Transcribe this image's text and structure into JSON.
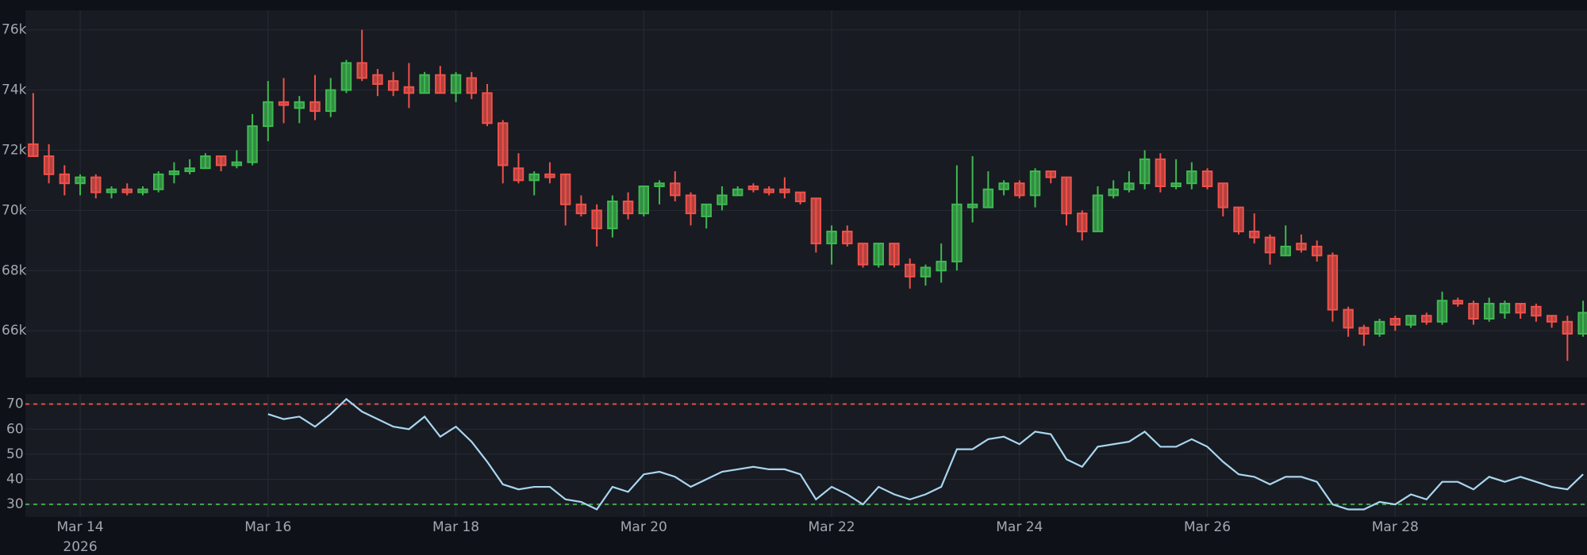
{
  "chart_data": {
    "type": "candlestick",
    "x": [
      "2026-03-13T12:00",
      "2026-03-13T16:00",
      "2026-03-13T20:00",
      "2026-03-14T00:00",
      "2026-03-14T04:00",
      "2026-03-14T08:00",
      "2026-03-14T12:00",
      "2026-03-14T16:00",
      "2026-03-14T20:00",
      "2026-03-15T00:00",
      "2026-03-15T04:00",
      "2026-03-15T08:00",
      "2026-03-15T12:00",
      "2026-03-15T16:00",
      "2026-03-15T20:00",
      "2026-03-16T00:00",
      "2026-03-16T04:00",
      "2026-03-16T08:00",
      "2026-03-16T12:00",
      "2026-03-16T16:00",
      "2026-03-16T20:00",
      "2026-03-17T00:00",
      "2026-03-17T04:00",
      "2026-03-17T08:00",
      "2026-03-17T12:00",
      "2026-03-17T16:00",
      "2026-03-17T20:00",
      "2026-03-18T00:00",
      "2026-03-18T04:00",
      "2026-03-18T08:00",
      "2026-03-18T12:00",
      "2026-03-18T16:00",
      "2026-03-18T20:00",
      "2026-03-19T00:00",
      "2026-03-19T04:00",
      "2026-03-19T08:00",
      "2026-03-19T12:00",
      "2026-03-19T16:00",
      "2026-03-19T20:00",
      "2026-03-20T00:00",
      "2026-03-20T04:00",
      "2026-03-20T08:00",
      "2026-03-20T12:00",
      "2026-03-20T16:00",
      "2026-03-20T20:00",
      "2026-03-21T00:00",
      "2026-03-21T04:00",
      "2026-03-21T08:00",
      "2026-03-21T12:00",
      "2026-03-21T16:00",
      "2026-03-21T20:00",
      "2026-03-22T00:00",
      "2026-03-22T04:00",
      "2026-03-22T08:00",
      "2026-03-22T12:00",
      "2026-03-22T16:00",
      "2026-03-22T20:00",
      "2026-03-23T00:00",
      "2026-03-23T04:00",
      "2026-03-23T08:00",
      "2026-03-23T12:00",
      "2026-03-23T16:00",
      "2026-03-23T20:00",
      "2026-03-24T00:00",
      "2026-03-24T04:00",
      "2026-03-24T08:00",
      "2026-03-24T12:00",
      "2026-03-24T16:00",
      "2026-03-24T20:00",
      "2026-03-25T00:00",
      "2026-03-25T04:00",
      "2026-03-25T08:00",
      "2026-03-25T12:00",
      "2026-03-25T16:00",
      "2026-03-25T20:00",
      "2026-03-26T00:00",
      "2026-03-26T04:00",
      "2026-03-26T08:00",
      "2026-03-26T12:00",
      "2026-03-26T16:00",
      "2026-03-26T20:00",
      "2026-03-27T00:00",
      "2026-03-27T04:00",
      "2026-03-27T08:00",
      "2026-03-27T12:00",
      "2026-03-27T16:00",
      "2026-03-27T20:00",
      "2026-03-28T00:00",
      "2026-03-28T04:00",
      "2026-03-28T08:00",
      "2026-03-28T12:00",
      "2026-03-28T16:00",
      "2026-03-28T20:00",
      "2026-03-29T00:00",
      "2026-03-29T04:00",
      "2026-03-29T08:00",
      "2026-03-29T12:00",
      "2026-03-29T16:00",
      "2026-03-29T20:00",
      "2026-03-30T00:00"
    ],
    "open": [
      72200,
      71800,
      71200,
      70900,
      71100,
      70600,
      70700,
      70600,
      70700,
      71200,
      71300,
      71400,
      71800,
      71500,
      71600,
      72800,
      73600,
      73400,
      73600,
      73300,
      74000,
      74900,
      74500,
      74300,
      74100,
      73900,
      74500,
      73900,
      74400,
      73900,
      72900,
      71400,
      71000,
      71200,
      71200,
      70200,
      70000,
      69400,
      70300,
      69900,
      70800,
      70900,
      70500,
      69800,
      70200,
      70500,
      70800,
      70700,
      70700,
      70600,
      70400,
      68900,
      69300,
      68900,
      68200,
      68900,
      68200,
      67800,
      68000,
      68300,
      70100,
      70100,
      70700,
      70900,
      70500,
      71300,
      71100,
      69900,
      69300,
      70500,
      70700,
      70900,
      71700,
      70800,
      70900,
      71300,
      70900,
      70100,
      69300,
      69100,
      68500,
      68900,
      68800,
      68500,
      66700,
      66100,
      65900,
      66400,
      66200,
      66500,
      66300,
      67000,
      66900,
      66400,
      66600,
      66900,
      66800,
      66500,
      66300,
      65900
    ],
    "high": [
      73900,
      72200,
      71500,
      71200,
      71200,
      70800,
      70900,
      70800,
      71300,
      71600,
      71700,
      71900,
      71800,
      72000,
      73200,
      74300,
      74400,
      73800,
      74500,
      74400,
      75000,
      76000,
      74700,
      74600,
      74900,
      74600,
      74800,
      74600,
      74600,
      74200,
      73000,
      71900,
      71300,
      71600,
      71200,
      70500,
      70200,
      70500,
      70600,
      70800,
      71000,
      71300,
      70600,
      70200,
      70800,
      70800,
      70900,
      70800,
      71100,
      70600,
      70400,
      69500,
      69500,
      68900,
      68900,
      68900,
      68400,
      68200,
      68900,
      71500,
      71800,
      71300,
      71000,
      71000,
      71400,
      71300,
      71100,
      70000,
      70800,
      71000,
      71300,
      72000,
      71900,
      71700,
      71600,
      71400,
      70900,
      70100,
      69900,
      69200,
      69500,
      69200,
      69000,
      68600,
      66800,
      66200,
      66400,
      66500,
      66500,
      66600,
      67300,
      67100,
      67000,
      67100,
      67000,
      66900,
      66900,
      66500,
      66500,
      67000
    ],
    "low": [
      71800,
      70900,
      70500,
      70500,
      70400,
      70400,
      70500,
      70500,
      70600,
      70900,
      71200,
      71400,
      71300,
      71400,
      71500,
      72300,
      72900,
      72900,
      73000,
      73100,
      73900,
      74300,
      73800,
      73800,
      73400,
      73900,
      73900,
      73600,
      73700,
      72800,
      70900,
      70900,
      70500,
      70900,
      69500,
      69800,
      68800,
      69100,
      69700,
      69800,
      70200,
      70300,
      69500,
      69400,
      70000,
      70500,
      70600,
      70500,
      70400,
      70200,
      68600,
      68200,
      68800,
      68100,
      68100,
      68100,
      67400,
      67500,
      67600,
      68000,
      69600,
      70100,
      70500,
      70400,
      70100,
      70900,
      69500,
      69000,
      69300,
      70400,
      70600,
      70700,
      70600,
      70700,
      70700,
      70700,
      69800,
      69200,
      68900,
      68200,
      68500,
      68600,
      68300,
      66300,
      65800,
      65500,
      65800,
      66000,
      66100,
      66200,
      66200,
      66800,
      66200,
      66300,
      66400,
      66400,
      66300,
      66100,
      65000,
      65800
    ],
    "close": [
      71800,
      71200,
      70900,
      71100,
      70600,
      70700,
      70600,
      70700,
      71200,
      71300,
      71400,
      71800,
      71500,
      71600,
      72800,
      73600,
      73500,
      73600,
      73300,
      74000,
      74900,
      74400,
      74200,
      74000,
      73900,
      74500,
      73900,
      74500,
      73900,
      72900,
      71500,
      71000,
      71200,
      71100,
      70200,
      69900,
      69400,
      70300,
      69900,
      70800,
      70900,
      70500,
      69900,
      70200,
      70500,
      70700,
      70700,
      70600,
      70600,
      70300,
      68900,
      69300,
      68900,
      68200,
      68900,
      68200,
      67800,
      68100,
      68300,
      70200,
      70200,
      70700,
      70900,
      70500,
      71300,
      71100,
      69900,
      69300,
      70500,
      70700,
      70900,
      71700,
      70800,
      70900,
      71300,
      70800,
      70100,
      69300,
      69100,
      68600,
      68800,
      68700,
      68500,
      66700,
      66100,
      65900,
      66300,
      66200,
      66500,
      66300,
      67000,
      66900,
      66400,
      66900,
      66900,
      66600,
      66500,
      66300,
      65900,
      66600
    ],
    "up_color": "#3fb950",
    "down_color": "#f0514a",
    "ylim": [
      64450,
      76650
    ],
    "yticks": [
      {
        "value": 66000,
        "label": "66k"
      },
      {
        "value": 68000,
        "label": "68k"
      },
      {
        "value": 70000,
        "label": "70k"
      },
      {
        "value": 72000,
        "label": "72k"
      },
      {
        "value": 74000,
        "label": "74k"
      },
      {
        "value": 76000,
        "label": "76k"
      }
    ],
    "xlim": [
      "2026-03-13T10:00",
      "2026-03-30T01:00"
    ],
    "xticks": [
      {
        "value": "2026-03-14",
        "label": "Mar 14"
      },
      {
        "value": "2026-03-16",
        "label": "Mar 16"
      },
      {
        "value": "2026-03-18",
        "label": "Mar 18"
      },
      {
        "value": "2026-03-20",
        "label": "Mar 20"
      },
      {
        "value": "2026-03-22",
        "label": "Mar 22"
      },
      {
        "value": "2026-03-24",
        "label": "Mar 24"
      },
      {
        "value": "2026-03-26",
        "label": "Mar 26"
      },
      {
        "value": "2026-03-28",
        "label": "Mar 28"
      }
    ],
    "x_year": "2026",
    "grid": true,
    "rsi": {
      "type": "line",
      "color": "#a9d6f0",
      "values": [
        null,
        null,
        null,
        null,
        null,
        null,
        null,
        null,
        null,
        null,
        null,
        null,
        null,
        null,
        null,
        66,
        64,
        65,
        61,
        66,
        72,
        67,
        64,
        61,
        60,
        65,
        57,
        61,
        55,
        47,
        38,
        36,
        37,
        37,
        32,
        31,
        28,
        37,
        35,
        42,
        43,
        41,
        37,
        40,
        43,
        44,
        45,
        44,
        44,
        42,
        32,
        37,
        34,
        30,
        37,
        34,
        32,
        34,
        37,
        52,
        52,
        56,
        57,
        54,
        59,
        58,
        48,
        45,
        53,
        54,
        55,
        59,
        53,
        53,
        56,
        53,
        47,
        42,
        41,
        38,
        41,
        41,
        39,
        30,
        28,
        28,
        31,
        30,
        34,
        32,
        39,
        39,
        36,
        41,
        39,
        41,
        39,
        37,
        36,
        42
      ],
      "ylim": [
        25,
        74
      ],
      "yticks": [
        30,
        40,
        50,
        60,
        70
      ],
      "hlines": [
        {
          "value": 70,
          "color": "#e0504a"
        },
        {
          "value": 30,
          "color": "#44a84c"
        }
      ]
    }
  }
}
